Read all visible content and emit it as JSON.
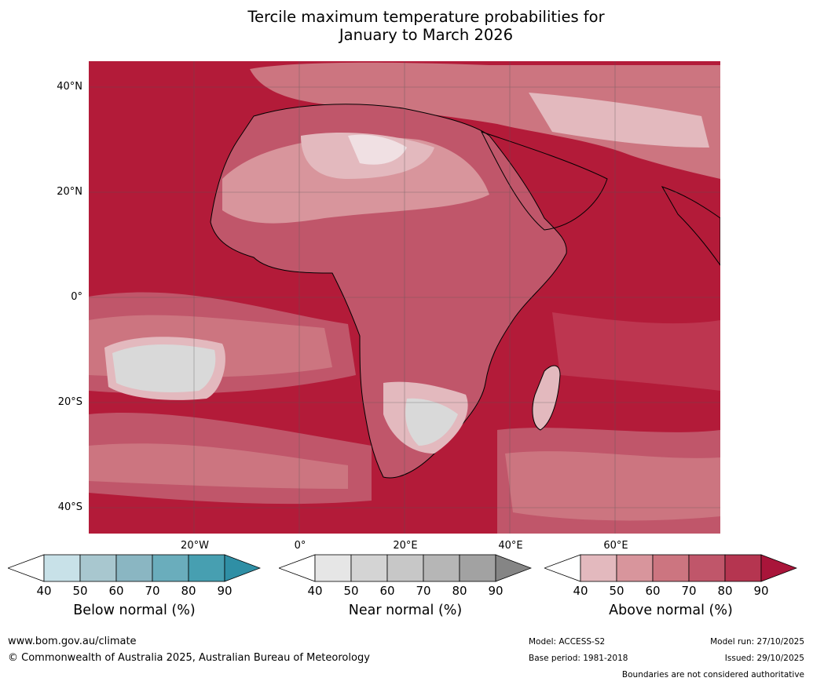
{
  "title": {
    "line1": "Tercile maximum temperature probabilities for",
    "line2": "January to March 2026"
  },
  "map": {
    "lat_labels": [
      "40°N",
      "20°N",
      "0°",
      "20°S",
      "40°S"
    ],
    "lon_labels": [
      "20°W",
      "0°",
      "20°E",
      "40°E",
      "60°E"
    ],
    "colors": {
      "a90": "#b31b39",
      "a80": "#bd3650",
      "a70": "#c95a6d",
      "a60": "#d68c96",
      "a50": "#e3b7bc",
      "n50": "#d9d9d9",
      "n40": "#eaeaea",
      "b40": "#cfe4ea",
      "coast": "#000000",
      "border": "#808080"
    }
  },
  "colorbars": [
    {
      "label": "Below normal (%)",
      "ticks": [
        "40",
        "50",
        "60",
        "70",
        "80",
        "90"
      ],
      "colors": [
        "#c8e1e8",
        "#a8c7cf",
        "#8ab6c2",
        "#6aadbc",
        "#479fb1",
        "#2f8fa5"
      ]
    },
    {
      "label": "Near normal (%)",
      "ticks": [
        "40",
        "50",
        "60",
        "70",
        "80",
        "90"
      ],
      "colors": [
        "#e6e6e6",
        "#d4d4d4",
        "#c7c7c7",
        "#b6b6b6",
        "#a2a2a2",
        "#858585"
      ]
    },
    {
      "label": "Above normal (%)",
      "ticks": [
        "40",
        "50",
        "60",
        "70",
        "80",
        "90"
      ],
      "colors": [
        "#e3b9be",
        "#d8959c",
        "#cc7580",
        "#c0566a",
        "#b53550",
        "#a9153a"
      ]
    }
  ],
  "footer": {
    "website": "www.bom.gov.au/climate",
    "copyright": "© Commonwealth of Australia 2025, Australian Bureau of Meteorology",
    "model": "Model: ACCESS-S2",
    "base_period": "Base period: 1981-2018",
    "model_run": "Model run: 27/10/2025",
    "issued": "Issued: 29/10/2025",
    "disclaimer": "Boundaries are not considered authoritative"
  }
}
